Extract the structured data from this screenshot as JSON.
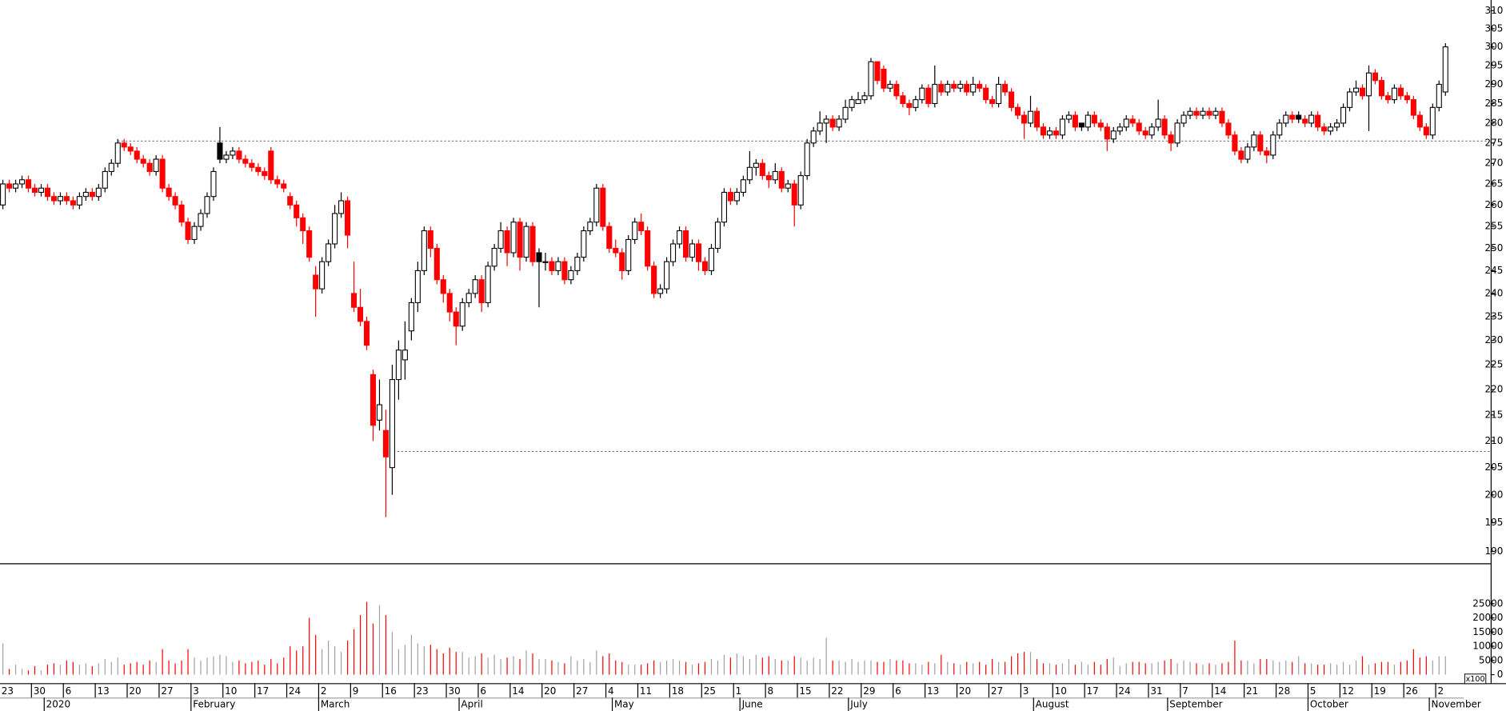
{
  "chart_data": {
    "type": "candlestick",
    "y_scale": "log",
    "ylim": [
      188,
      313
    ],
    "yticks": [
      190,
      195,
      200,
      205,
      210,
      215,
      220,
      225,
      230,
      235,
      240,
      245,
      250,
      255,
      260,
      265,
      270,
      275,
      280,
      285,
      290,
      295,
      300,
      305,
      310
    ],
    "y2lim": [
      -3000,
      38900
    ],
    "y2ticks": [
      0,
      5000,
      10000,
      15000,
      20000,
      25000
    ],
    "volume_unit": "x100",
    "up_color": "#000000",
    "down_color": "#ff0000",
    "volume_color": "#a0a0a0",
    "reference_lines": [
      275.5,
      208
    ],
    "categories": [
      "23",
      null,
      null,
      null,
      null,
      "30",
      null,
      null,
      null,
      null,
      "6",
      null,
      null,
      null,
      null,
      "13",
      null,
      null,
      null,
      null,
      "20",
      null,
      null,
      null,
      null,
      "27",
      null,
      null,
      null,
      null,
      "3",
      null,
      null,
      null,
      null,
      "10",
      null,
      null,
      null,
      null,
      "17",
      null,
      null,
      null,
      null,
      "24",
      null,
      null,
      null,
      null,
      "2",
      null,
      null,
      null,
      null,
      "9",
      null,
      null,
      null,
      null,
      "16",
      null,
      null,
      null,
      null,
      "23",
      null,
      null,
      null,
      null,
      "30",
      null,
      null,
      null,
      null,
      "6",
      null,
      null,
      null,
      null,
      "14",
      null,
      null,
      null,
      null,
      "20",
      null,
      null,
      null,
      null,
      "27",
      null,
      null,
      null,
      null,
      "4",
      null,
      null,
      null,
      null,
      "11",
      null,
      null,
      null,
      null,
      "18",
      null,
      null,
      null,
      null,
      "25",
      null,
      null,
      null,
      null,
      "1",
      null,
      null,
      null,
      null,
      "8",
      null,
      null,
      null,
      null,
      "15",
      null,
      null,
      null,
      null,
      "22",
      null,
      null,
      null,
      null,
      "29",
      null,
      null,
      null,
      null,
      "6",
      null,
      null,
      null,
      null,
      "13",
      null,
      null,
      null,
      null,
      "20",
      null,
      null,
      null,
      null,
      "27",
      null,
      null,
      null,
      null,
      "3",
      null,
      null,
      null,
      null,
      "10",
      null,
      null,
      null,
      null,
      "17",
      null,
      null,
      null,
      null,
      "24",
      null,
      null,
      null,
      null,
      "31",
      null,
      null,
      null,
      null,
      "7",
      null,
      null,
      null,
      null,
      "14",
      null,
      null,
      null,
      null,
      "21",
      null,
      null,
      null,
      null,
      "28",
      null,
      null,
      null,
      null,
      "5",
      null,
      null,
      null,
      null,
      "12",
      null,
      null,
      null,
      null,
      "19",
      null,
      null,
      null,
      null,
      "26",
      null,
      null,
      null,
      null,
      "2",
      null
    ],
    "months": [
      null,
      null,
      null,
      null,
      null,
      null,
      null,
      "2020",
      null,
      null,
      null,
      null,
      null,
      null,
      null,
      null,
      null,
      null,
      null,
      null,
      null,
      null,
      null,
      null,
      null,
      null,
      null,
      null,
      null,
      null,
      "February",
      null,
      null,
      null,
      null,
      null,
      null,
      null,
      null,
      null,
      null,
      null,
      null,
      null,
      null,
      null,
      null,
      null,
      null,
      null,
      "March",
      null,
      null,
      null,
      null,
      null,
      null,
      null,
      null,
      null,
      null,
      null,
      null,
      null,
      null,
      null,
      null,
      null,
      null,
      null,
      null,
      null,
      "April",
      null,
      null,
      null,
      null,
      null,
      null,
      null,
      null,
      null,
      null,
      null,
      null,
      null,
      null,
      null,
      null,
      null,
      null,
      null,
      null,
      null,
      null,
      null,
      "May",
      null,
      null,
      null,
      null,
      null,
      null,
      null,
      null,
      null,
      null,
      null,
      null,
      null,
      null,
      null,
      null,
      null,
      null,
      null,
      "June",
      null,
      null,
      null,
      null,
      null,
      null,
      null,
      null,
      null,
      null,
      null,
      null,
      null,
      null,
      null,
      null,
      "July",
      null,
      null,
      null,
      null,
      null,
      null,
      null,
      null,
      null,
      null,
      null,
      null,
      null,
      null,
      null,
      null,
      null,
      null,
      null,
      null,
      null,
      null,
      null,
      null,
      null,
      null,
      null,
      null,
      "August",
      null,
      null,
      null,
      null,
      null,
      null,
      null,
      null,
      null,
      null,
      null,
      null,
      null,
      null,
      null,
      null,
      null,
      null,
      null,
      null,
      "September",
      null,
      null,
      null,
      null,
      null,
      null,
      null,
      null,
      null,
      null,
      null,
      null,
      null,
      null,
      null,
      null,
      null,
      null,
      null,
      null,
      null,
      "October",
      null,
      null,
      null,
      null,
      null,
      null,
      null,
      null,
      null,
      null,
      null,
      null,
      null,
      null,
      null,
      null,
      null,
      null,
      "November",
      null
    ],
    "open": [
      260,
      265,
      264,
      265,
      266,
      264,
      263,
      264,
      262,
      261,
      262,
      261,
      260,
      262,
      263,
      262,
      264,
      268,
      270,
      275,
      274,
      273,
      271,
      270,
      268,
      271,
      264,
      262,
      260,
      256,
      252,
      255,
      258,
      262,
      275,
      271,
      272,
      273,
      271,
      270,
      269,
      268,
      273,
      266,
      265,
      262,
      260,
      257,
      254,
      244,
      241,
      247,
      251,
      258,
      261,
      240,
      237,
      234,
      223,
      214,
      212,
      205,
      222,
      226,
      232,
      238,
      245,
      254,
      250,
      243,
      240,
      236,
      233,
      238,
      240,
      243,
      238,
      246,
      250,
      254,
      249,
      256,
      248,
      255,
      249,
      247,
      247,
      245,
      247,
      243,
      245,
      248,
      254,
      256,
      264,
      255,
      250,
      249,
      245,
      252,
      256,
      254,
      246,
      240,
      241,
      247,
      251,
      254,
      248,
      251,
      247,
      245,
      250,
      256,
      263,
      261,
      263,
      266,
      269,
      270,
      267,
      266,
      268,
      264,
      265,
      260,
      267,
      275,
      278,
      280,
      281,
      279,
      281,
      284,
      285,
      286,
      287,
      296,
      294,
      289,
      290,
      287,
      285,
      284,
      286,
      289,
      285,
      290,
      288,
      290,
      289,
      290,
      288,
      290,
      289,
      286,
      285,
      290,
      288,
      284,
      282,
      280,
      283,
      279,
      277,
      278,
      277,
      281,
      282,
      280,
      279,
      282,
      280,
      279,
      276,
      278,
      279,
      281,
      280,
      278,
      277,
      279,
      281,
      277,
      275,
      280,
      282,
      283,
      282,
      283,
      282,
      283,
      280,
      277,
      273,
      271,
      274,
      277,
      273,
      272,
      277,
      280,
      282,
      282,
      281,
      280,
      282,
      279,
      278,
      279,
      280,
      284,
      288,
      289,
      287,
      293,
      291,
      287,
      286,
      289,
      287,
      286,
      282,
      279,
      277,
      284,
      288
    ],
    "high": [
      266,
      266,
      266,
      267,
      267,
      265,
      265,
      265,
      263,
      263,
      263,
      262,
      263,
      264,
      264,
      265,
      269,
      271,
      276,
      276,
      275,
      274,
      272,
      271,
      272,
      272,
      265,
      263,
      261,
      257,
      256,
      259,
      263,
      269,
      279,
      273,
      274,
      274,
      272,
      271,
      270,
      269,
      274,
      267,
      266,
      263,
      261,
      258,
      255,
      246,
      248,
      252,
      260,
      263,
      262,
      247,
      241,
      235,
      224,
      222,
      216,
      225,
      230,
      234,
      239,
      247,
      255,
      255,
      251,
      244,
      241,
      237,
      239,
      241,
      244,
      244,
      247,
      251,
      256,
      255,
      257,
      257,
      256,
      256,
      250,
      249,
      248,
      248,
      248,
      246,
      249,
      255,
      257,
      265,
      265,
      256,
      252,
      250,
      253,
      257,
      258,
      255,
      247,
      242,
      248,
      252,
      255,
      255,
      252,
      252,
      248,
      251,
      257,
      264,
      264,
      264,
      267,
      273,
      271,
      271,
      268,
      270,
      269,
      266,
      266,
      268,
      276,
      279,
      283,
      282,
      282,
      282,
      286,
      287,
      288,
      288,
      297,
      296,
      295,
      291,
      291,
      288,
      286,
      287,
      290,
      290,
      295,
      291,
      291,
      291,
      291,
      291,
      292,
      291,
      290,
      287,
      292,
      291,
      289,
      285,
      283,
      287,
      284,
      280,
      279,
      279,
      282,
      283,
      283,
      280,
      283,
      283,
      281,
      280,
      279,
      280,
      282,
      282,
      281,
      279,
      280,
      286,
      282,
      278,
      281,
      283,
      284,
      284,
      284,
      284,
      284,
      284,
      281,
      278,
      274,
      275,
      278,
      278,
      274,
      278,
      281,
      283,
      283,
      283,
      282,
      283,
      283,
      280,
      280,
      281,
      285,
      289,
      291,
      290,
      295,
      294,
      292,
      288,
      290,
      290,
      288,
      287,
      283,
      280,
      285,
      291,
      301
    ],
    "low": [
      259,
      263,
      263,
      264,
      263,
      262,
      262,
      261,
      260,
      260,
      260,
      259,
      259,
      261,
      261,
      261,
      263,
      267,
      269,
      273,
      272,
      270,
      269,
      267,
      267,
      263,
      261,
      259,
      255,
      251,
      251,
      254,
      257,
      261,
      270,
      270,
      271,
      270,
      269,
      268,
      267,
      266,
      265,
      264,
      263,
      259,
      255,
      251,
      247,
      235,
      240,
      246,
      250,
      257,
      250,
      236,
      233,
      228,
      210,
      212,
      196,
      200,
      218,
      222,
      230,
      236,
      244,
      248,
      242,
      238,
      234,
      229,
      232,
      237,
      239,
      236,
      237,
      245,
      249,
      246,
      248,
      245,
      247,
      246,
      237,
      245,
      244,
      244,
      242,
      242,
      244,
      247,
      253,
      255,
      254,
      249,
      248,
      243,
      244,
      251,
      253,
      245,
      239,
      239,
      240,
      246,
      250,
      247,
      247,
      245,
      244,
      244,
      249,
      255,
      260,
      260,
      262,
      265,
      267,
      266,
      264,
      265,
      263,
      263,
      255,
      259,
      266,
      274,
      277,
      275,
      278,
      278,
      280,
      283,
      285,
      285,
      286,
      290,
      288,
      288,
      286,
      284,
      282,
      283,
      285,
      284,
      284,
      287,
      287,
      288,
      288,
      287,
      287,
      288,
      285,
      284,
      284,
      287,
      283,
      281,
      276,
      279,
      278,
      276,
      276,
      276,
      276,
      280,
      278,
      278,
      278,
      279,
      278,
      273,
      275,
      277,
      278,
      279,
      277,
      276,
      276,
      278,
      276,
      273,
      274,
      279,
      281,
      281,
      281,
      281,
      281,
      279,
      276,
      272,
      270,
      270,
      273,
      272,
      270,
      271,
      276,
      279,
      280,
      280,
      279,
      279,
      278,
      277,
      277,
      278,
      279,
      283,
      287,
      286,
      278,
      290,
      286,
      285,
      285,
      286,
      285,
      281,
      278,
      276,
      276,
      283,
      287
    ],
    "close": [
      265,
      264,
      265,
      266,
      264,
      263,
      264,
      262,
      261,
      262,
      261,
      260,
      262,
      263,
      262,
      264,
      268,
      270,
      275,
      274,
      273,
      271,
      270,
      268,
      271,
      264,
      262,
      260,
      256,
      252,
      255,
      258,
      262,
      268,
      271,
      272,
      273,
      271,
      270,
      269,
      268,
      267,
      266,
      265,
      264,
      260,
      257,
      254,
      248,
      241,
      247,
      251,
      258,
      261,
      253,
      237,
      234,
      229,
      213,
      217,
      207,
      222,
      228,
      228,
      238,
      245,
      254,
      250,
      243,
      240,
      236,
      233,
      238,
      240,
      243,
      238,
      246,
      250,
      254,
      249,
      256,
      248,
      255,
      247,
      247,
      247,
      245,
      247,
      243,
      245,
      248,
      254,
      256,
      264,
      255,
      250,
      249,
      245,
      252,
      256,
      254,
      246,
      240,
      241,
      247,
      251,
      254,
      248,
      251,
      247,
      245,
      250,
      256,
      263,
      261,
      263,
      266,
      269,
      270,
      267,
      266,
      268,
      264,
      265,
      260,
      267,
      275,
      278,
      280,
      281,
      279,
      281,
      284,
      286,
      286,
      287,
      296,
      291,
      289,
      290,
      287,
      285,
      284,
      286,
      289,
      285,
      290,
      288,
      290,
      289,
      290,
      288,
      290,
      289,
      286,
      285,
      290,
      288,
      284,
      282,
      280,
      283,
      279,
      277,
      278,
      277,
      281,
      282,
      279,
      279,
      282,
      280,
      279,
      276,
      278,
      279,
      281,
      280,
      278,
      277,
      279,
      281,
      277,
      275,
      280,
      282,
      283,
      282,
      283,
      282,
      283,
      280,
      277,
      273,
      271,
      274,
      277,
      273,
      272,
      277,
      280,
      282,
      281,
      281,
      280,
      282,
      279,
      278,
      279,
      280,
      284,
      288,
      289,
      287,
      293,
      291,
      287,
      286,
      289,
      287,
      286,
      282,
      279,
      277,
      284,
      290,
      300
    ],
    "volume": [
      11000,
      2000,
      3500,
      2000,
      1500,
      3000,
      1500,
      3500,
      4000,
      3500,
      5000,
      4500,
      3500,
      4000,
      3000,
      4000,
      5500,
      4500,
      6000,
      3500,
      4000,
      4500,
      3500,
      5000,
      4500,
      9000,
      5000,
      4000,
      5000,
      9000,
      6000,
      5000,
      6000,
      6500,
      7000,
      6500,
      4500,
      5000,
      4000,
      4500,
      5000,
      3500,
      5500,
      4000,
      6000,
      10000,
      8500,
      10000,
      20000,
      14000,
      9000,
      12000,
      10000,
      8000,
      12000,
      16000,
      21000,
      25600,
      18000,
      24500,
      21000,
      15000,
      9000,
      10500,
      14000,
      11000,
      10000,
      10500,
      9000,
      7500,
      9500,
      8000,
      8000,
      6000,
      6500,
      7500,
      6000,
      7000,
      5500,
      6000,
      6500,
      5500,
      8500,
      7500,
      5500,
      5500,
      5000,
      4500,
      4000,
      6500,
      5000,
      5500,
      4500,
      8500,
      6500,
      7500,
      5000,
      4500,
      3500,
      3500,
      3500,
      4000,
      5000,
      4500,
      5000,
      5500,
      5000,
      4500,
      3500,
      4000,
      4500,
      5500,
      5000,
      7000,
      6000,
      7500,
      6500,
      5500,
      7000,
      6000,
      6500,
      5500,
      5000,
      5000,
      6500,
      6000,
      5000,
      6000,
      5500,
      13000,
      5000,
      5000,
      4500,
      5500,
      4500,
      5000,
      5000,
      4500,
      4500,
      5500,
      5000,
      5000,
      4000,
      4000,
      3500,
      4500,
      4000,
      7000,
      4500,
      4000,
      3500,
      4500,
      4000,
      4500,
      3500,
      5500,
      4500,
      4500,
      6500,
      7500,
      8000,
      8000,
      5500,
      4000,
      4000,
      3500,
      4000,
      5500,
      3500,
      4500,
      3500,
      4500,
      3500,
      5500,
      6000,
      3000,
      4000,
      4500,
      4500,
      4000,
      4000,
      4500,
      5000,
      5500,
      4000,
      5000,
      4500,
      4000,
      3500,
      4000,
      3500,
      4000,
      4500,
      12000,
      5000,
      5000,
      4000,
      5500,
      5500,
      5000,
      4500,
      5000,
      4500,
      6500,
      4000,
      4000,
      3500,
      3500,
      4000,
      3500,
      4500,
      3500,
      5000,
      6500,
      3500,
      4000,
      4500,
      4500,
      3500,
      4500,
      5000,
      9000,
      6000,
      6500,
      5000,
      6500,
      6500
    ]
  }
}
